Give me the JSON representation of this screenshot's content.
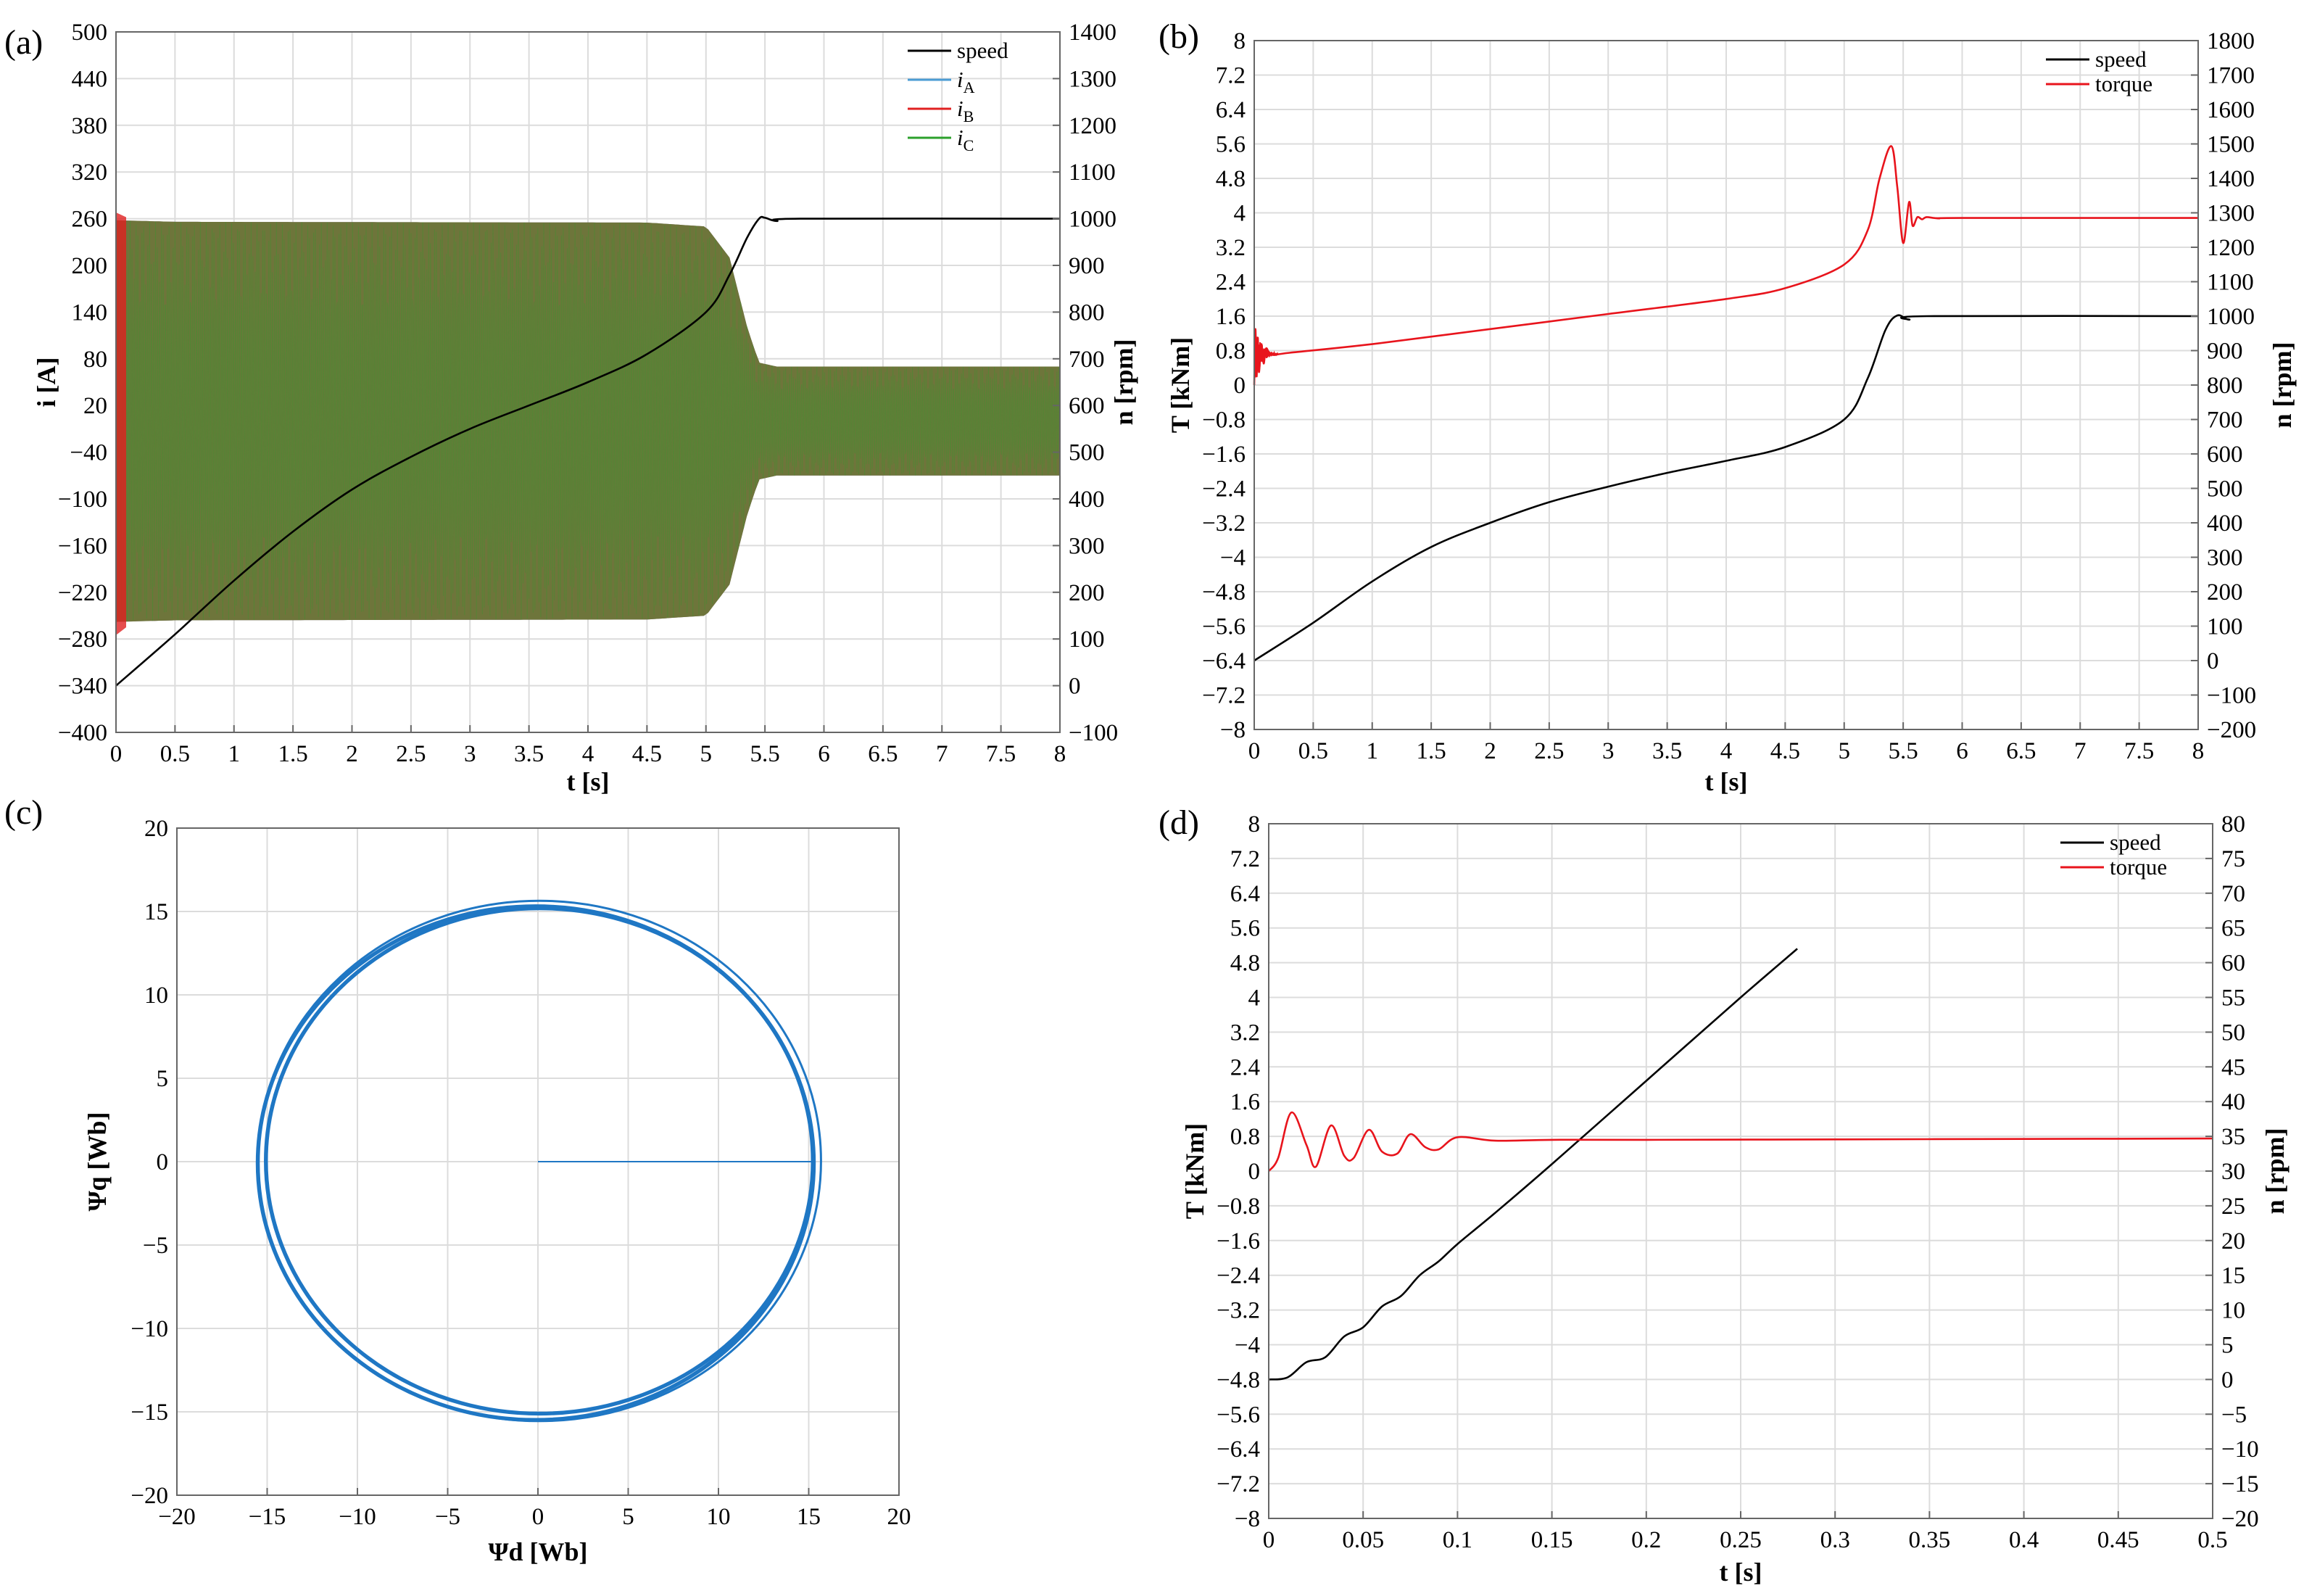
{
  "panels": {
    "a": {
      "label": "(a)",
      "xlabel": "t [s]",
      "ylabel_left": "i [A]",
      "ylabel_right": "n [rpm]"
    },
    "b": {
      "label": "(b)",
      "xlabel": "t [s]",
      "ylabel_left": "T [kNm]",
      "ylabel_right": "n [rpm]"
    },
    "c": {
      "label": "(c)",
      "xlabel": "Ψd [Wb]",
      "ylabel": "Ψq [Wb]"
    },
    "d": {
      "label": "(d)",
      "xlabel": "t [s]",
      "ylabel_left": "T [kNm]",
      "ylabel_right": "n [rpm]"
    }
  },
  "chart_data": [
    {
      "id": "a",
      "type": "line",
      "xlabel": "t [s]",
      "ylabel": "i [A]",
      "y2label": "n [rpm]",
      "xlim": [
        0,
        8
      ],
      "ylim": [
        -400,
        500
      ],
      "y2lim": [
        -100,
        1400
      ],
      "xticks": [
        "0",
        "0.5",
        "1",
        "1.5",
        "2",
        "2.5",
        "3",
        "3.5",
        "4",
        "4.5",
        "5",
        "5.5",
        "6",
        "6.5",
        "7",
        "7.5",
        "8"
      ],
      "yticks": [
        "−400",
        "−340",
        "−280",
        "−220",
        "−160",
        "−100",
        "−40",
        "20",
        "80",
        "140",
        "200",
        "260",
        "320",
        "380",
        "440",
        "500"
      ],
      "y2ticks": [
        "−100",
        "0",
        "100",
        "200",
        "300",
        "400",
        "500",
        "600",
        "700",
        "800",
        "900",
        "1000",
        "1100",
        "1200",
        "1300",
        "1400"
      ],
      "grid": true,
      "legend": "top-right",
      "series": [
        {
          "name": "speed",
          "color": "#000000",
          "axis": "right",
          "x": [
            0,
            0.5,
            1,
            1.5,
            2,
            2.5,
            3,
            3.5,
            4,
            4.5,
            5,
            5.2,
            5.35,
            5.45,
            5.5,
            5.6,
            5.8,
            8
          ],
          "y": [
            0,
            110,
            225,
            330,
            420,
            490,
            550,
            600,
            650,
            710,
            800,
            880,
            960,
            1000,
            1002,
            995,
            1000,
            1000
          ]
        },
        {
          "name": "iA",
          "color": "#4a9bd4",
          "axis": "left",
          "style": "three-phase oscillation envelope",
          "envelope_x": [
            0,
            0.5,
            4.5,
            5,
            5.2,
            5.35,
            5.45,
            5.6,
            8
          ],
          "envelope_amp": [
            258,
            256,
            255,
            250,
            210,
            120,
            75,
            70,
            70
          ]
        },
        {
          "name": "iB",
          "color": "#e02020",
          "axis": "left",
          "style": "three-phase oscillation envelope",
          "envelope_x": [
            0,
            0.5,
            4.5,
            5,
            5.2,
            5.35,
            5.45,
            5.6,
            8
          ],
          "envelope_amp": [
            258,
            256,
            255,
            250,
            210,
            120,
            75,
            70,
            70
          ]
        },
        {
          "name": "iC",
          "color": "#2ca02c",
          "axis": "left",
          "style": "three-phase oscillation envelope",
          "envelope_x": [
            0,
            0.5,
            4.5,
            5,
            5.2,
            5.35,
            5.45,
            5.6,
            8
          ],
          "envelope_amp": [
            258,
            256,
            255,
            250,
            210,
            120,
            75,
            70,
            70
          ]
        }
      ],
      "legend_entries": [
        {
          "name": "speed",
          "color": "#000000"
        },
        {
          "name": "iA",
          "color": "#4a9bd4"
        },
        {
          "name": "iB",
          "color": "#e02020"
        },
        {
          "name": "iC",
          "color": "#2ca02c"
        }
      ]
    },
    {
      "id": "b",
      "type": "line",
      "xlabel": "t [s]",
      "ylabel": "T [kNm]",
      "y2label": "n [rpm]",
      "xlim": [
        0,
        8
      ],
      "ylim": [
        -8,
        8
      ],
      "y2lim": [
        -200,
        1800
      ],
      "xticks": [
        "0",
        "0.5",
        "1",
        "1.5",
        "2",
        "2.5",
        "3",
        "3.5",
        "4",
        "4.5",
        "5",
        "5.5",
        "6",
        "6.5",
        "7",
        "7.5",
        "8"
      ],
      "yticks": [
        "−8",
        "−7.2",
        "−6.4",
        "−5.6",
        "−4.8",
        "−4",
        "−3.2",
        "−2.4",
        "−1.6",
        "−0.8",
        "0",
        "0.8",
        "1.6",
        "2.4",
        "3.2",
        "4",
        "4.8",
        "5.6",
        "6.4",
        "7.2",
        "8"
      ],
      "y2ticks": [
        "−200",
        "−100",
        "0",
        "100",
        "200",
        "300",
        "400",
        "500",
        "600",
        "700",
        "800",
        "900",
        "1000",
        "1100",
        "1200",
        "1300",
        "1400",
        "1500",
        "1600",
        "1700",
        "1800"
      ],
      "grid": true,
      "legend": "top-right",
      "series": [
        {
          "name": "speed",
          "color": "#000000",
          "axis": "right",
          "x": [
            0,
            0.5,
            1,
            1.5,
            2,
            2.5,
            3,
            3.5,
            4,
            4.5,
            5,
            5.2,
            5.35,
            5.45,
            5.55,
            5.7,
            8
          ],
          "y": [
            0,
            110,
            230,
            330,
            400,
            460,
            505,
            545,
            580,
            620,
            700,
            820,
            960,
            1002,
            990,
            1000,
            1000
          ]
        },
        {
          "name": "torque",
          "color": "#e8141c",
          "axis": "left",
          "x": [
            0,
            0.01,
            0.02,
            0.03,
            0.04,
            0.06,
            0.08,
            0.1,
            0.15,
            0.3,
            1,
            2,
            3,
            4,
            4.5,
            5,
            5.2,
            5.3,
            5.4,
            5.45,
            5.5,
            5.55,
            5.58,
            5.62,
            5.66,
            5.7,
            5.8,
            6,
            8
          ],
          "y": [
            0,
            1.3,
            0.2,
            1.1,
            0.3,
            0.95,
            0.5,
            0.85,
            0.7,
            0.75,
            0.95,
            1.3,
            1.65,
            2.0,
            2.25,
            2.8,
            3.6,
            4.8,
            5.55,
            4.6,
            3.3,
            4.25,
            3.7,
            3.9,
            3.85,
            3.9,
            3.87,
            3.88,
            3.88
          ]
        }
      ],
      "legend_entries": [
        {
          "name": "speed",
          "color": "#000000"
        },
        {
          "name": "torque",
          "color": "#e8141c"
        }
      ]
    },
    {
      "id": "c",
      "type": "line",
      "xlabel": "Ψd [Wb]",
      "ylabel": "Ψq [Wb]",
      "xlim": [
        -20,
        20
      ],
      "ylim": [
        -20,
        20
      ],
      "xticks": [
        "−20",
        "−15",
        "−10",
        "−5",
        "0",
        "5",
        "10",
        "15",
        "20"
      ],
      "yticks": [
        "−20",
        "−15",
        "−10",
        "−5",
        "0",
        "5",
        "10",
        "15",
        "20"
      ],
      "grid": true,
      "series": [
        {
          "name": "",
          "color": "#1f77c4",
          "shape": "stator flux trajectory",
          "start": [
            0,
            0
          ],
          "to_point": [
            15.2,
            0
          ],
          "radius_outer": 15.6,
          "radius_inner": 15.1
        }
      ]
    },
    {
      "id": "d",
      "type": "line",
      "xlabel": "t [s]",
      "ylabel": "T [kNm]",
      "y2label": "n [rpm]",
      "xlim": [
        0,
        0.5
      ],
      "ylim": [
        -8,
        8
      ],
      "y2lim": [
        -20,
        80
      ],
      "xticks": [
        "0",
        "0.05",
        "0.1",
        "0.15",
        "0.2",
        "0.25",
        "0.3",
        "0.35",
        "0.4",
        "0.45",
        "0.5"
      ],
      "yticks": [
        "−8",
        "−7.2",
        "−6.4",
        "−5.6",
        "−4.8",
        "−4",
        "−3.2",
        "−2.4",
        "−1.6",
        "−0.8",
        "0",
        "0.8",
        "1.6",
        "2.4",
        "3.2",
        "4",
        "4.8",
        "5.6",
        "6.4",
        "7.2",
        "8"
      ],
      "y2ticks": [
        "−20",
        "−15",
        "−10",
        "−5",
        "0",
        "5",
        "10",
        "15",
        "20",
        "25",
        "30",
        "35",
        "40",
        "45",
        "50",
        "55",
        "60",
        "65",
        "70",
        "75",
        "80"
      ],
      "grid": true,
      "legend": "top-right",
      "series": [
        {
          "name": "speed",
          "color": "#000000",
          "axis": "right",
          "x": [
            0,
            0.01,
            0.02,
            0.03,
            0.04,
            0.05,
            0.06,
            0.07,
            0.08,
            0.09,
            0.1,
            0.12,
            0.15,
            0.2,
            0.25,
            0.28
          ],
          "y": [
            0,
            0.3,
            2.5,
            3.2,
            6.2,
            7.5,
            10.5,
            12.0,
            15.0,
            17.0,
            19.5,
            24.0,
            31.0,
            43.0,
            55.0,
            62.0
          ]
        },
        {
          "name": "torque",
          "color": "#e8141c",
          "axis": "left",
          "x": [
            0,
            0.005,
            0.012,
            0.02,
            0.025,
            0.033,
            0.04,
            0.045,
            0.053,
            0.06,
            0.068,
            0.075,
            0.083,
            0.09,
            0.1,
            0.12,
            0.15,
            0.2,
            0.3,
            0.4,
            0.5
          ],
          "y": [
            0,
            0.3,
            1.35,
            0.6,
            0.1,
            1.05,
            0.35,
            0.3,
            0.95,
            0.45,
            0.4,
            0.85,
            0.55,
            0.5,
            0.78,
            0.7,
            0.72,
            0.72,
            0.73,
            0.74,
            0.75
          ]
        }
      ],
      "legend_entries": [
        {
          "name": "speed",
          "color": "#000000"
        },
        {
          "name": "torque",
          "color": "#e8141c"
        }
      ]
    }
  ]
}
